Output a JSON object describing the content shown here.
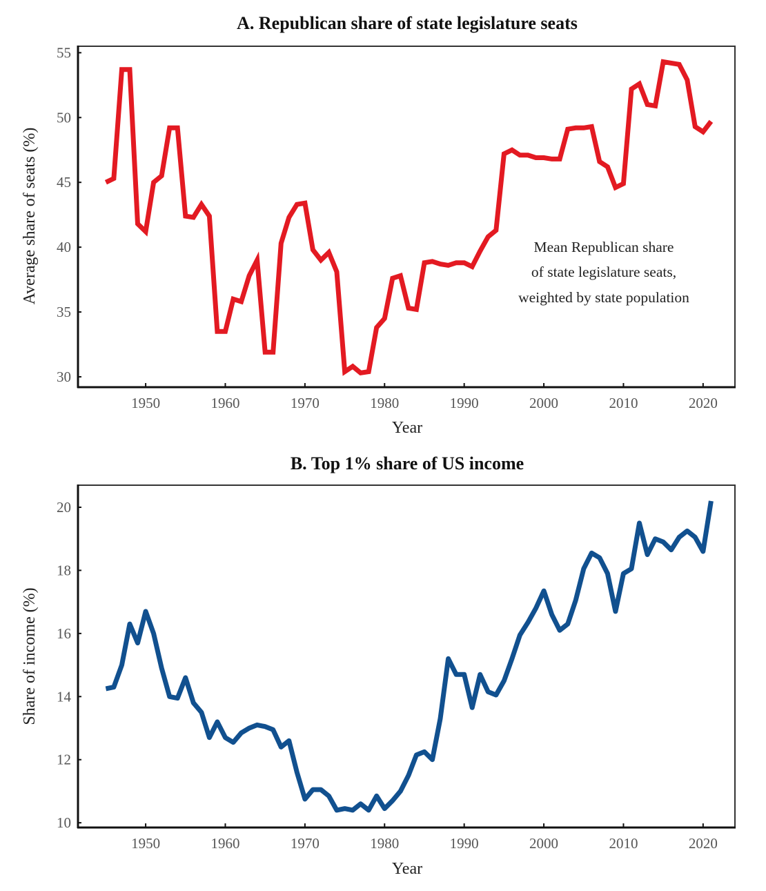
{
  "chart_data": [
    {
      "type": "line",
      "title": "A.  Republican share of state legislature seats",
      "xlabel": "Year",
      "ylabel": "Average share of seats (%)",
      "xlim": [
        1941.5,
        2024
      ],
      "ylim": [
        29.2,
        55.5
      ],
      "xticks": [
        1950,
        1960,
        1970,
        1980,
        1990,
        2000,
        2010,
        2020
      ],
      "yticks": [
        30,
        35,
        40,
        45,
        50,
        55
      ],
      "grid": false,
      "color": "#e31a22",
      "annotation": [
        "Mean Republican share",
        "of state legislature seats,",
        "weighted by state population"
      ],
      "series": [
        {
          "name": "Republican share",
          "x": [
            1945,
            1946,
            1947,
            1948,
            1949,
            1950,
            1951,
            1952,
            1953,
            1954,
            1955,
            1956,
            1957,
            1958,
            1959,
            1960,
            1961,
            1962,
            1963,
            1964,
            1965,
            1966,
            1967,
            1968,
            1969,
            1970,
            1971,
            1972,
            1973,
            1974,
            1975,
            1976,
            1977,
            1978,
            1979,
            1980,
            1981,
            1982,
            1983,
            1984,
            1985,
            1986,
            1987,
            1988,
            1989,
            1990,
            1991,
            1992,
            1993,
            1994,
            1995,
            1996,
            1997,
            1998,
            1999,
            2000,
            2001,
            2002,
            2003,
            2004,
            2005,
            2006,
            2007,
            2008,
            2009,
            2010,
            2011,
            2012,
            2013,
            2014,
            2015,
            2016,
            2017,
            2018,
            2019,
            2020,
            2021
          ],
          "values": [
            45.0,
            45.3,
            53.7,
            53.7,
            41.8,
            41.2,
            45.0,
            45.5,
            49.2,
            49.2,
            42.4,
            42.3,
            43.3,
            42.4,
            33.5,
            33.5,
            36.0,
            35.8,
            37.8,
            39.0,
            31.9,
            31.9,
            40.3,
            42.3,
            43.3,
            43.4,
            39.8,
            39.0,
            39.6,
            38.1,
            30.4,
            30.8,
            30.3,
            30.4,
            33.8,
            34.5,
            37.6,
            37.8,
            35.3,
            35.2,
            38.8,
            38.9,
            38.7,
            38.6,
            38.8,
            38.8,
            38.5,
            39.7,
            40.8,
            41.3,
            47.2,
            47.5,
            47.1,
            47.1,
            46.9,
            46.9,
            46.8,
            46.8,
            49.1,
            49.2,
            49.2,
            49.3,
            46.6,
            46.2,
            44.6,
            44.9,
            52.2,
            52.6,
            51.0,
            50.9,
            54.3,
            54.2,
            54.1,
            52.9,
            49.3,
            48.9,
            49.7
          ]
        }
      ]
    },
    {
      "type": "line",
      "title": "B.  Top 1% share of US income",
      "xlabel": "Year",
      "ylabel": "Share of income (%)",
      "xlim": [
        1941.5,
        2024
      ],
      "ylim": [
        9.85,
        20.7
      ],
      "xticks": [
        1950,
        1960,
        1970,
        1980,
        1990,
        2000,
        2010,
        2020
      ],
      "yticks": [
        10,
        12,
        14,
        16,
        18,
        20
      ],
      "grid": false,
      "color": "#11508f",
      "series": [
        {
          "name": "Top 1% income share",
          "x": [
            1945,
            1946,
            1947,
            1948,
            1949,
            1950,
            1951,
            1952,
            1953,
            1954,
            1955,
            1956,
            1957,
            1958,
            1959,
            1960,
            1961,
            1962,
            1963,
            1964,
            1965,
            1966,
            1967,
            1968,
            1969,
            1970,
            1971,
            1972,
            1973,
            1974,
            1975,
            1976,
            1977,
            1978,
            1979,
            1980,
            1981,
            1982,
            1983,
            1984,
            1985,
            1986,
            1987,
            1988,
            1989,
            1990,
            1991,
            1992,
            1993,
            1994,
            1995,
            1996,
            1997,
            1998,
            1999,
            2000,
            2001,
            2002,
            2003,
            2004,
            2005,
            2006,
            2007,
            2008,
            2009,
            2010,
            2011,
            2012,
            2013,
            2014,
            2015,
            2016,
            2017,
            2018,
            2019,
            2020,
            2021
          ],
          "values": [
            14.25,
            14.3,
            15.0,
            16.3,
            15.7,
            16.7,
            16.0,
            14.9,
            14.0,
            13.95,
            14.6,
            13.8,
            13.5,
            12.7,
            13.2,
            12.7,
            12.55,
            12.85,
            13.0,
            13.1,
            13.05,
            12.95,
            12.4,
            12.6,
            11.6,
            10.75,
            11.05,
            11.05,
            10.85,
            10.4,
            10.45,
            10.4,
            10.6,
            10.4,
            10.85,
            10.45,
            10.7,
            11.0,
            11.5,
            12.15,
            12.25,
            12.0,
            13.3,
            15.2,
            14.7,
            14.7,
            13.65,
            14.7,
            14.15,
            14.05,
            14.5,
            15.2,
            15.95,
            16.35,
            16.8,
            17.35,
            16.6,
            16.1,
            16.3,
            17.05,
            18.05,
            18.55,
            18.4,
            17.9,
            16.7,
            17.9,
            18.05,
            19.5,
            18.5,
            19.0,
            18.9,
            18.65,
            19.05,
            19.25,
            19.05,
            18.6,
            20.2
          ]
        }
      ]
    }
  ]
}
